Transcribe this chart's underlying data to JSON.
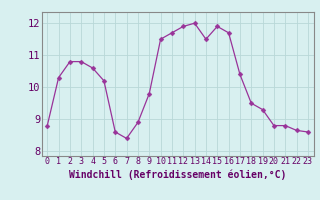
{
  "x": [
    0,
    1,
    2,
    3,
    4,
    5,
    6,
    7,
    8,
    9,
    10,
    11,
    12,
    13,
    14,
    15,
    16,
    17,
    18,
    19,
    20,
    21,
    22,
    23
  ],
  "y": [
    8.8,
    10.3,
    10.8,
    10.8,
    10.6,
    10.2,
    8.6,
    8.4,
    8.9,
    9.8,
    11.5,
    11.7,
    11.9,
    12.0,
    11.5,
    11.9,
    11.7,
    10.4,
    9.5,
    9.3,
    8.8,
    8.8,
    8.65,
    8.6
  ],
  "line_color": "#993399",
  "marker": "D",
  "marker_size": 2.5,
  "bg_color": "#d8f0f0",
  "grid_color": "#b8d8d8",
  "xlabel": "Windchill (Refroidissement éolien,°C)",
  "xlim": [
    -0.5,
    23.5
  ],
  "ylim": [
    7.85,
    12.35
  ],
  "yticks": [
    8,
    9,
    10,
    11,
    12
  ],
  "xticks": [
    0,
    1,
    2,
    3,
    4,
    5,
    6,
    7,
    8,
    9,
    10,
    11,
    12,
    13,
    14,
    15,
    16,
    17,
    18,
    19,
    20,
    21,
    22,
    23
  ],
  "xlabel_fontsize": 7.0,
  "ytick_fontsize": 7.5,
  "xtick_fontsize": 6.0,
  "tick_color": "#660066",
  "axis_color": "#888888",
  "spine_color": "#888888"
}
